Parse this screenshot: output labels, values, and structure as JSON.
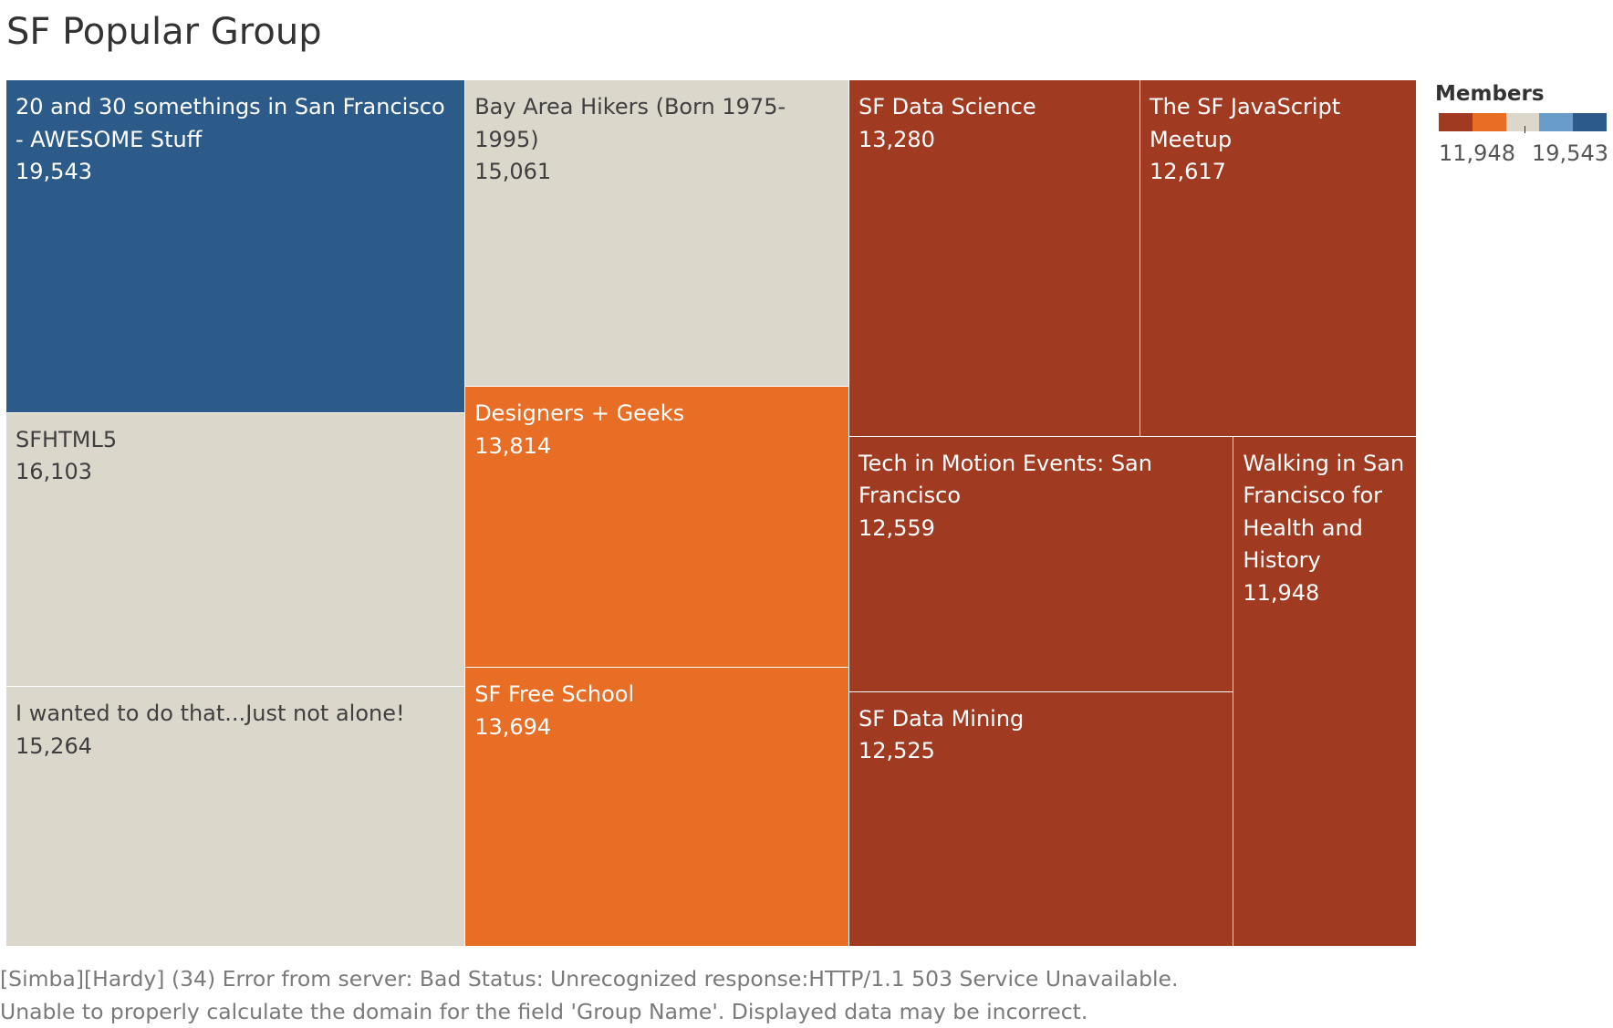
{
  "title": "SF Popular Group",
  "chart_data": {
    "type": "treemap",
    "title": "SF Popular Group",
    "size_measure": "Members",
    "color_measure": "Members",
    "items": [
      {
        "name": "20 and 30 somethings in San Francisco - AWESOME Stuff",
        "value": 19543,
        "label": "19,543",
        "color": "#2d5b89"
      },
      {
        "name": "SFHTML5",
        "value": 16103,
        "label": "16,103",
        "color": "#dbd7cb"
      },
      {
        "name": "I wanted to do that...Just not alone!",
        "value": 15264,
        "label": "15,264",
        "color": "#dbd7cb"
      },
      {
        "name": "Bay Area Hikers (Born 1975-1995)",
        "value": 15061,
        "label": "15,061",
        "color": "#dbd7cb"
      },
      {
        "name": "Designers + Geeks",
        "value": 13814,
        "label": "13,814",
        "color": "#e86d25"
      },
      {
        "name": "SF Free School",
        "value": 13694,
        "label": "13,694",
        "color": "#e86d25"
      },
      {
        "name": "SF Data Science",
        "value": 13280,
        "label": "13,280",
        "color": "#a03b22"
      },
      {
        "name": "The SF JavaScript Meetup",
        "value": 12617,
        "label": "12,617",
        "color": "#a03b22"
      },
      {
        "name": "Tech in Motion Events: San Francisco",
        "value": 12559,
        "label": "12,559",
        "color": "#a03b22"
      },
      {
        "name": "SF Data Mining",
        "value": 12525,
        "label": "12,525",
        "color": "#a03b22"
      },
      {
        "name": "Walking in San Francisco for Health and History",
        "value": 11948,
        "label": "11,948",
        "color": "#a03b22"
      }
    ]
  },
  "legend": {
    "title": "Members",
    "min_label": "11,948",
    "max_label": "19,543",
    "colors": [
      "#a03b22",
      "#e86d25",
      "#dbd7cb",
      "#6a9cc9",
      "#2d5b89"
    ]
  },
  "footer": {
    "line1": "[Simba][Hardy] (34) Error from server: Bad Status: Unrecognized response:HTTP/1.1 503 Service Unavailable.",
    "line2": "Unable to properly calculate the domain for the field 'Group Name'. Displayed data may be incorrect."
  }
}
